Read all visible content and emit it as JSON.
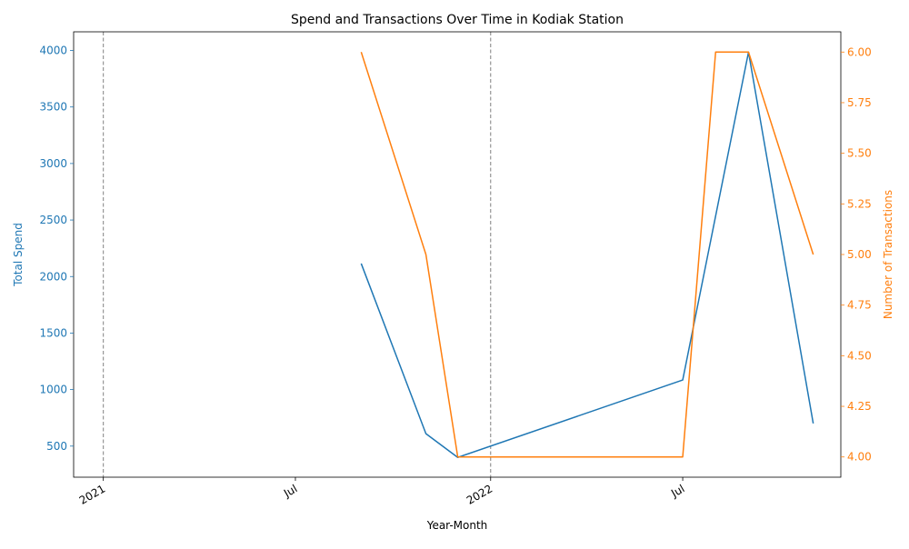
{
  "chart_data": {
    "type": "line",
    "title": "Spend and Transactions Over Time in Kodiak Station",
    "xlabel": "Year-Month",
    "x_tick_labels": [
      "2021",
      "Jul",
      "2022",
      "Jul"
    ],
    "x_tick_dates": [
      "2021-01-01",
      "2021-07-01",
      "2022-01-01",
      "2022-07-01"
    ],
    "xlim": [
      "2020-12-04",
      "2022-11-27"
    ],
    "vertical_reference_lines": [
      "2021-01-01",
      "2022-01-01"
    ],
    "y_left": {
      "label": "Total Spend",
      "color": "#1f77b4",
      "ylim": [
        225,
        4165
      ],
      "ticks": [
        500,
        1000,
        1500,
        2000,
        2500,
        3000,
        3500,
        4000
      ],
      "tick_labels": [
        "500",
        "1000",
        "1500",
        "2000",
        "2500",
        "3000",
        "3500",
        "4000"
      ]
    },
    "y_right": {
      "label": "Number of Transactions",
      "color": "#ff7f0e",
      "ylim": [
        3.9,
        6.1
      ],
      "ticks": [
        4.0,
        4.25,
        4.5,
        4.75,
        5.0,
        5.25,
        5.5,
        5.75,
        6.0
      ],
      "tick_labels": [
        "4.00",
        "4.25",
        "4.50",
        "4.75",
        "5.00",
        "5.25",
        "5.50",
        "5.75",
        "6.00"
      ]
    },
    "series": [
      {
        "axis": "left",
        "color": "#1f77b4",
        "x": [
          "2021-09-01",
          "2021-11-01",
          "2021-12-01",
          "2022-07-01",
          "2022-09-01",
          "2022-11-01"
        ],
        "values": [
          2115,
          610,
          400,
          1085,
          3985,
          700
        ]
      },
      {
        "axis": "right",
        "color": "#ff7f0e",
        "x": [
          "2021-09-01",
          "2021-11-01",
          "2021-12-01",
          "2022-07-01",
          "2022-08-01",
          "2022-09-01",
          "2022-11-01"
        ],
        "values": [
          6.0,
          5.0,
          4.0,
          4.0,
          6.0,
          6.0,
          5.0
        ]
      }
    ],
    "grid": false,
    "legend": "none"
  }
}
